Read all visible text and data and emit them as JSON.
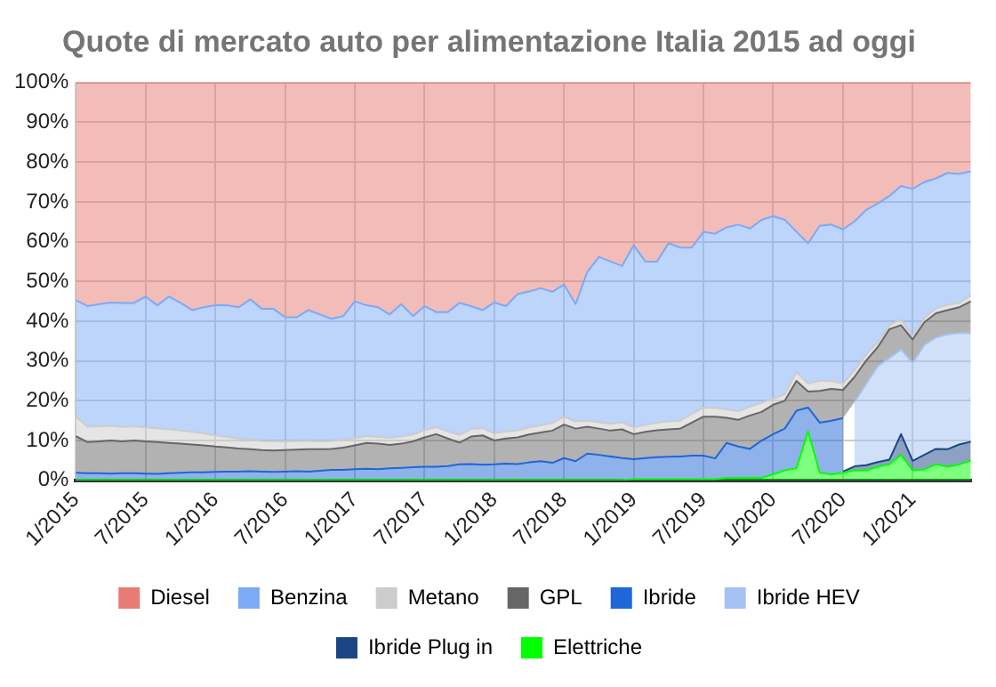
{
  "chart_data": {
    "type": "area",
    "title": "Quote di mercato auto per alimentazione Italia 2015 ad oggi",
    "stacked": true,
    "categories": [
      "1/2015",
      null,
      null,
      null,
      null,
      null,
      "7/2015",
      null,
      null,
      null,
      null,
      null,
      "1/2016",
      null,
      null,
      null,
      null,
      null,
      "7/2016",
      null,
      null,
      null,
      null,
      null,
      "1/2017",
      null,
      null,
      null,
      null,
      null,
      "7/2017",
      null,
      null,
      null,
      null,
      null,
      "1/2018",
      null,
      null,
      null,
      null,
      null,
      "7/2018",
      null,
      null,
      null,
      null,
      null,
      "1/2019",
      null,
      null,
      null,
      null,
      null,
      "7/2019",
      null,
      null,
      null,
      null,
      null,
      "1/2020",
      null,
      null,
      null,
      null,
      null,
      "7/2020",
      null,
      null,
      null,
      null,
      null,
      "1/2021",
      null,
      null,
      null,
      null,
      null
    ],
    "series": [
      {
        "name": "Elettriche",
        "color": "#00ff00",
        "values": [
          0.1,
          0.1,
          0.1,
          0.1,
          0.1,
          0.1,
          0.1,
          0.1,
          0.1,
          0.1,
          0.1,
          0.1,
          0.1,
          0.1,
          0.1,
          0.1,
          0.1,
          0.1,
          0.1,
          0.1,
          0.1,
          0.1,
          0.1,
          0.1,
          0.1,
          0.1,
          0.1,
          0.1,
          0.1,
          0.1,
          0.1,
          0.1,
          0.1,
          0.1,
          0.1,
          0.1,
          0.1,
          0.1,
          0.1,
          0.1,
          0.1,
          0.1,
          0.1,
          0.1,
          0.1,
          0.1,
          0.1,
          0.1,
          0.3,
          0.3,
          0.3,
          0.3,
          0.3,
          0.3,
          0.3,
          0.3,
          0.6,
          0.6,
          0.6,
          0.6,
          1.5,
          2.5,
          3,
          12.3,
          1.9,
          1.5,
          1.9,
          2.5,
          2.5,
          3.4,
          4,
          6.4,
          2.5,
          2.7,
          4,
          3.4,
          4,
          4.9
        ]
      },
      {
        "name": "Ibride Plug in",
        "color": "#1c4587",
        "values": [
          null,
          null,
          null,
          null,
          null,
          null,
          null,
          null,
          null,
          null,
          null,
          null,
          null,
          null,
          null,
          null,
          null,
          null,
          null,
          null,
          null,
          null,
          null,
          null,
          null,
          null,
          null,
          null,
          null,
          null,
          null,
          null,
          null,
          null,
          null,
          null,
          null,
          null,
          null,
          null,
          null,
          null,
          null,
          null,
          null,
          null,
          null,
          null,
          null,
          null,
          null,
          null,
          null,
          null,
          null,
          null,
          null,
          null,
          null,
          null,
          null,
          null,
          null,
          null,
          null,
          null,
          0.3,
          1.0,
          1.3,
          1.2,
          1.2,
          5.2,
          2.4,
          3.7,
          3.9,
          4.4,
          5.0,
          4.8
        ]
      },
      {
        "name": "Ibride HEV",
        "color": "#a4c2f4",
        "values": [
          null,
          null,
          null,
          null,
          null,
          null,
          null,
          null,
          null,
          null,
          null,
          null,
          null,
          null,
          null,
          null,
          null,
          null,
          null,
          null,
          null,
          null,
          null,
          null,
          null,
          null,
          null,
          null,
          null,
          null,
          null,
          null,
          null,
          null,
          null,
          null,
          null,
          null,
          null,
          null,
          null,
          null,
          null,
          null,
          null,
          null,
          null,
          null,
          null,
          null,
          null,
          null,
          null,
          null,
          null,
          null,
          null,
          null,
          null,
          null,
          null,
          null,
          null,
          null,
          null,
          null,
          null,
          16.2,
          20.4,
          24.1,
          25.5,
          21.3,
          24.6,
          27.6,
          28.0,
          28.9,
          28.0,
          27.3
        ]
      },
      {
        "name": "Ibride",
        "color": "#1f66d8",
        "values": [
          1.8,
          1.7,
          1.7,
          1.6,
          1.7,
          1.7,
          1.6,
          1.5,
          1.7,
          1.8,
          1.9,
          1.9,
          2.0,
          2.1,
          2.1,
          2.2,
          2.1,
          2.0,
          2.1,
          2.2,
          2.1,
          2.3,
          2.5,
          2.5,
          2.7,
          2.8,
          2.7,
          2.9,
          3.0,
          3.2,
          3.3,
          3.3,
          3.5,
          3.9,
          4.0,
          3.8,
          3.9,
          4.1,
          4.0,
          4.4,
          4.7,
          4.3,
          5.5,
          4.7,
          6.6,
          6.3,
          5.9,
          5.5,
          5.0,
          5.3,
          5.5,
          5.6,
          5.7,
          5.9,
          5.9,
          5.2,
          8.8,
          7.9,
          7.3,
          9.4,
          10.1,
          10.5,
          14.5,
          6.0,
          12.6,
          13.5,
          13.4,
          null,
          null,
          null,
          null,
          null,
          null,
          null,
          null,
          null,
          null,
          null
        ]
      },
      {
        "name": "GPL",
        "color": "#666666",
        "values": [
          9.2,
          7.8,
          8.0,
          8.3,
          8.0,
          8.2,
          8.1,
          8.0,
          7.6,
          7.3,
          7.0,
          6.8,
          6.4,
          6.1,
          5.8,
          5.5,
          5.4,
          5.4,
          5.4,
          5.4,
          5.6,
          5.4,
          5.3,
          5.6,
          6.0,
          6.5,
          6.4,
          5.9,
          6.1,
          6.5,
          7.4,
          8.2,
          6.9,
          5.5,
          6.9,
          7.4,
          6.0,
          6.3,
          6.7,
          7.0,
          7.2,
          8.1,
          8.4,
          8.2,
          6.8,
          6.6,
          6.5,
          7.2,
          6.3,
          6.6,
          6.8,
          6.9,
          7.0,
          8.3,
          9.8,
          10.5,
          6.3,
          6.7,
          8.4,
          7.2,
          7.4,
          7.0,
          7.5,
          4.0,
          8.0,
          8.0,
          7.1,
          6.3,
          5.9,
          4.8,
          7.3,
          6.1,
          5.9,
          5.7,
          6.1,
          6.1,
          6.5,
          8.0
        ]
      },
      {
        "name": "Metano",
        "color": "#cccccc",
        "values": [
          4.9,
          3.9,
          3.8,
          3.7,
          3.6,
          3.6,
          3.5,
          3.5,
          3.4,
          3.3,
          3.2,
          3.0,
          2.8,
          2.6,
          2.5,
          2.4,
          2.3,
          2.3,
          2.2,
          2.2,
          2.1,
          2.0,
          2.0,
          2.0,
          1.8,
          1.7,
          1.7,
          1.8,
          1.8,
          1.7,
          1.8,
          1.8,
          1.8,
          1.9,
          1.9,
          1.8,
          1.8,
          1.8,
          1.7,
          1.8,
          1.8,
          1.9,
          2.0,
          1.8,
          1.5,
          1.6,
          1.7,
          1.8,
          1.7,
          1.8,
          1.9,
          2.0,
          2.0,
          2.2,
          2.3,
          2.2,
          2.1,
          2.2,
          2.2,
          2.3,
          1.5,
          1.7,
          2.2,
          2.0,
          2.5,
          2.0,
          1.6,
          1.6,
          1.5,
          1.2,
          1.0,
          1.5,
          0.7,
          1.1,
          1.2,
          1.3,
          1.1,
          1.5
        ]
      },
      {
        "name": "Benzina",
        "color": "#7baaf7",
        "values": [
          29.3,
          30.3,
          30.7,
          31.0,
          31.2,
          31.0,
          32.9,
          30.9,
          33.4,
          32.1,
          30.6,
          31.7,
          32.7,
          33.1,
          33.0,
          35.3,
          33.2,
          33.3,
          31.2,
          31.1,
          32.9,
          31.9,
          30.7,
          31.1,
          34.4,
          32.9,
          32.6,
          31.0,
          33.3,
          29.8,
          31.2,
          28.9,
          30.0,
          33.2,
          30.9,
          29.7,
          32.9,
          31.5,
          34.3,
          34.2,
          34.5,
          33.0,
          33.2,
          29.5,
          37.4,
          41.6,
          40.8,
          39.3,
          45.8,
          41.0,
          40.5,
          44.8,
          43.5,
          41.8,
          44.2,
          43.8,
          45.8,
          46.9,
          44.8,
          46.0,
          45.9,
          43.8,
          35.3,
          35.3,
          39.0,
          39.3,
          38.8,
          37.5,
          36.4,
          34.9,
          32.5,
          33.5,
          37.2,
          34.2,
          32.7,
          33.2,
          32.4,
          31.2
        ]
      },
      {
        "name": "Diesel",
        "color": "#e67c73",
        "values": [
          54.7,
          56.2,
          55.7,
          55.3,
          55.4,
          55.4,
          53.8,
          56.0,
          53.8,
          55.4,
          57.2,
          56.5,
          56.0,
          56.0,
          56.5,
          54.5,
          56.9,
          56.9,
          59.0,
          59.0,
          57.2,
          58.3,
          59.4,
          58.7,
          55.0,
          56.0,
          56.5,
          58.3,
          55.7,
          58.7,
          56.2,
          57.7,
          57.7,
          55.4,
          56.2,
          57.2,
          55.3,
          56.2,
          53.2,
          52.5,
          51.7,
          52.6,
          50.8,
          55.7,
          47.6,
          43.8,
          45.0,
          46.1,
          40.9,
          45.0,
          45.0,
          40.4,
          41.5,
          41.5,
          37.5,
          38.0,
          36.4,
          35.7,
          36.7,
          34.5,
          33.6,
          34.5,
          37.5,
          40.4,
          36.0,
          35.7,
          36.9,
          34.9,
          32.0,
          30.4,
          28.5,
          26.0,
          26.7,
          25.0,
          24.1,
          22.7,
          23.0,
          22.3
        ]
      }
    ],
    "ylim": [
      0,
      100
    ],
    "yticks": [
      {
        "value": 0,
        "label": "0%"
      },
      {
        "value": 10,
        "label": "10%"
      },
      {
        "value": 20,
        "label": "20%"
      },
      {
        "value": 30,
        "label": "30%"
      },
      {
        "value": 40,
        "label": "40%"
      },
      {
        "value": 50,
        "label": "50%"
      },
      {
        "value": 60,
        "label": "60%"
      },
      {
        "value": 70,
        "label": "70%"
      },
      {
        "value": 80,
        "label": "80%"
      },
      {
        "value": 90,
        "label": "90%"
      },
      {
        "value": 100,
        "label": "100%"
      }
    ],
    "grid": true,
    "legend": "bottom"
  }
}
